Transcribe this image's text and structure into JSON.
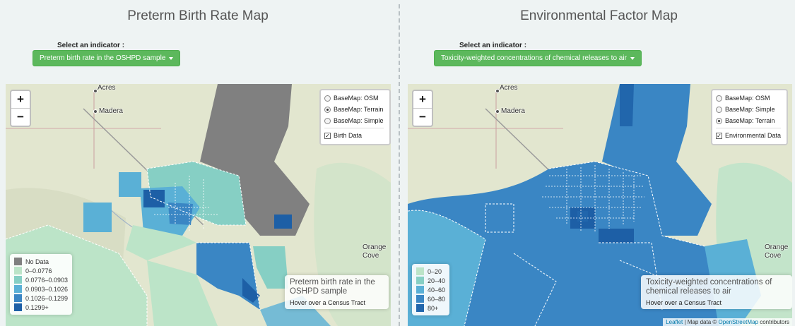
{
  "left": {
    "title": "Preterm Birth Rate Map",
    "select_label": "Select an indicator :",
    "dropdown_value": "Preterm birth rate in the OSHPD sample",
    "layers": {
      "osm": "BaseMap: OSM",
      "terrain": "BaseMap: Terrain",
      "simple": "BaseMap: Simple",
      "overlay": "Birth Data",
      "selected": "BaseMap: Terrain"
    },
    "legend": [
      {
        "label": "No Data",
        "color": "#808080"
      },
      {
        "label": "0–0.0776",
        "color": "#bce4c8"
      },
      {
        "label": "0.0776–0.0903",
        "color": "#86cfc4"
      },
      {
        "label": "0.0903–0.1026",
        "color": "#5ab0d6"
      },
      {
        "label": "0.1026–0.1299",
        "color": "#3a86c4"
      },
      {
        "label": "0.1299+",
        "color": "#1d5fa6"
      }
    ],
    "info_title": "Preterm birth rate in the OSHPD sample",
    "info_hint": "Hover over a Census Tract"
  },
  "right": {
    "title": "Environmental Factor Map",
    "select_label": "Select an indicator :",
    "dropdown_value": "Toxicity-weighted concentrations of chemical releases to air",
    "layers": {
      "osm": "BaseMap: OSM",
      "simple": "BaseMap: Simple",
      "terrain": "BaseMap: Terrain",
      "overlay": "Environmental Data",
      "selected": "BaseMap: Terrain"
    },
    "legend": [
      {
        "label": "0–20",
        "color": "#bce4c8"
      },
      {
        "label": "20–40",
        "color": "#86cfc4"
      },
      {
        "label": "40–60",
        "color": "#5ab0d6"
      },
      {
        "label": "60–80",
        "color": "#3a86c4"
      },
      {
        "label": "80+",
        "color": "#2166ac"
      }
    ],
    "info_title": "Toxicity-weighted concentrations of chemical releases to air",
    "info_hint": "Hover over a Census Tract"
  },
  "zoom": {
    "in": "+",
    "out": "−"
  },
  "places": {
    "acres": "Acres",
    "madera": "Madera",
    "orange": "Orange",
    "cove": "Cove"
  },
  "attribution": {
    "leaflet": "Leaflet",
    "sep": " | Map data © ",
    "osm": "OpenStreetMap",
    "contrib": " contributors"
  },
  "colors": {
    "button": "#5cb85c",
    "terrain": "#e2e6cf",
    "nodata": "#808080"
  }
}
